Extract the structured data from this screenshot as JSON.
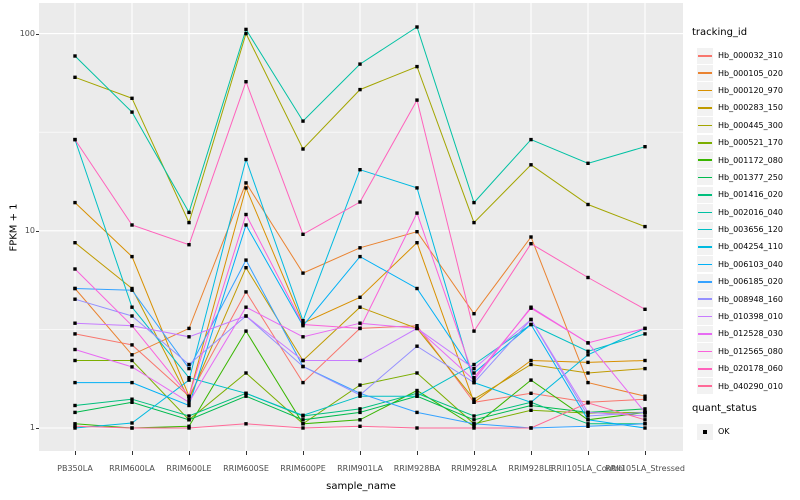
{
  "figure": {
    "y_axis_title": "FPKM + 1",
    "x_axis_title": "sample_name"
  },
  "legend": {
    "tracking_title": "tracking_id",
    "quant_title": "quant_status",
    "quant_items": [
      {
        "label": "OK",
        "marker": "black-square"
      }
    ]
  },
  "colors": {
    "panel_background": "#EBEBEB",
    "grid": "#FFFFFF",
    "tick_text": "#4D4D4D",
    "axis_text": "#000000",
    "point": "#000000"
  },
  "chart_data": {
    "type": "line",
    "title": "",
    "xlabel": "sample_name",
    "ylabel": "FPKM + 1",
    "yscale": "log10",
    "ylim": [
      0.7,
      143
    ],
    "y_major_ticks": [
      1,
      10,
      100
    ],
    "y_minor_ticks": [
      3.1623,
      31.623
    ],
    "grid": true,
    "legend_position": "right",
    "point_marker": "filled-square",
    "categories": [
      "PB350LA",
      "RRIM600LA",
      "RRIM600LE",
      "RRIM600SE",
      "RRIM600PE",
      "RRIM901LA",
      "RRIM928BA",
      "RRIM928LA",
      "RRIM928LE",
      "RRII105LA_Control",
      "RRII105LA_Stressed"
    ],
    "series": [
      {
        "name": "Hb_000032_310",
        "color": "#F8766D",
        "values": [
          3.0,
          2.64,
          1.45,
          4.9,
          1.7,
          3.2,
          3.3,
          1.35,
          1.5,
          1.35,
          1.4
        ]
      },
      {
        "name": "Hb_000105_020",
        "color": "#EA8331",
        "values": [
          5.1,
          2.35,
          3.2,
          17.5,
          6.1,
          8.2,
          9.9,
          3.8,
          9.3,
          1.7,
          1.45
        ]
      },
      {
        "name": "Hb_000120_970",
        "color": "#D89000",
        "values": [
          13.9,
          7.4,
          1.45,
          16.5,
          3.4,
          4.6,
          8.7,
          1.35,
          2.2,
          2.15,
          2.2
        ]
      },
      {
        "name": "Hb_000283_150",
        "color": "#C09B00",
        "values": [
          8.7,
          5.1,
          1.4,
          6.5,
          2.2,
          4.1,
          3.2,
          1.4,
          2.1,
          1.9,
          2.0
        ]
      },
      {
        "name": "Hb_000445_300",
        "color": "#A3A500",
        "values": [
          60,
          47,
          11,
          100,
          26,
          52,
          68,
          11,
          21.6,
          13.6,
          10.5
        ]
      },
      {
        "name": "Hb_000521_170",
        "color": "#7CAE00",
        "values": [
          2.2,
          2.2,
          1.1,
          1.9,
          1.05,
          1.65,
          1.9,
          1.05,
          1.23,
          1.19,
          1.2
        ]
      },
      {
        "name": "Hb_001172_080",
        "color": "#39B600",
        "values": [
          1.05,
          1.0,
          1.02,
          3.1,
          1.05,
          1.1,
          1.55,
          1.02,
          1.75,
          1.1,
          1.2
        ]
      },
      {
        "name": "Hb_001377_250",
        "color": "#00BB4E",
        "values": [
          1.2,
          1.35,
          1.1,
          1.45,
          1.1,
          1.2,
          1.45,
          1.1,
          1.3,
          1.2,
          1.25
        ]
      },
      {
        "name": "Hb_001416_020",
        "color": "#00BF7D",
        "values": [
          1.3,
          1.4,
          1.15,
          1.5,
          1.15,
          1.25,
          1.5,
          1.15,
          1.35,
          1.05,
          1.05
        ]
      },
      {
        "name": "Hb_002016_040",
        "color": "#00C1A3",
        "values": [
          77,
          40,
          12.4,
          105,
          36,
          70,
          108,
          13.9,
          29,
          22,
          26.7
        ]
      },
      {
        "name": "Hb_003656_120",
        "color": "#00BFC4",
        "values": [
          29,
          4.1,
          1.8,
          1.5,
          1.16,
          1.45,
          1.45,
          2.1,
          3.35,
          2.45,
          3.0
        ]
      },
      {
        "name": "Hb_004254_110",
        "color": "#00BAE0",
        "values": [
          1.0,
          1.06,
          1.75,
          23,
          3.5,
          20.4,
          16.5,
          1.7,
          1.35,
          2.35,
          3.2
        ]
      },
      {
        "name": "Hb_006103_040",
        "color": "#00B0F6",
        "values": [
          1.7,
          1.7,
          1.3,
          10.7,
          3.3,
          7.4,
          5.1,
          1.9,
          3.35,
          1.1,
          1.0
        ]
      },
      {
        "name": "Hb_006185_020",
        "color": "#35A2FF",
        "values": [
          5.1,
          5.0,
          2.0,
          7.1,
          2.05,
          1.5,
          1.2,
          1.05,
          1.0,
          1.02,
          1.05
        ]
      },
      {
        "name": "Hb_008948_160",
        "color": "#9590FF",
        "values": [
          4.5,
          3.7,
          2.1,
          3.7,
          2.05,
          1.47,
          2.6,
          1.7,
          3.55,
          1.15,
          1.2
        ]
      },
      {
        "name": "Hb_010398_010",
        "color": "#C77CFF",
        "values": [
          3.4,
          3.3,
          2.9,
          3.7,
          2.2,
          2.2,
          3.2,
          2.0,
          3.55,
          1.2,
          1.15
        ]
      },
      {
        "name": "Hb_012528_030",
        "color": "#E76BF3",
        "values": [
          2.5,
          2.04,
          1.35,
          4.1,
          2.9,
          3.4,
          3.2,
          1.75,
          4.1,
          2.7,
          1.2
        ]
      },
      {
        "name": "Hb_012565_080",
        "color": "#FA62DB",
        "values": [
          6.4,
          3.3,
          1.45,
          12.1,
          3.35,
          3.2,
          12.3,
          1.8,
          4.05,
          2.7,
          3.2
        ]
      },
      {
        "name": "Hb_020178_060",
        "color": "#FF62BC",
        "values": [
          29,
          10.7,
          8.5,
          57,
          9.6,
          14,
          46,
          3.1,
          8.6,
          5.8,
          4.0
        ]
      },
      {
        "name": "Hb_040290_010",
        "color": "#FF6A98",
        "values": [
          1.02,
          1.0,
          1.0,
          1.05,
          1.0,
          1.02,
          1.0,
          1.0,
          1.0,
          1.34,
          1.1
        ]
      }
    ],
    "y_tick_labels": [
      "100",
      "10",
      "1"
    ],
    "quant_status": "OK"
  }
}
